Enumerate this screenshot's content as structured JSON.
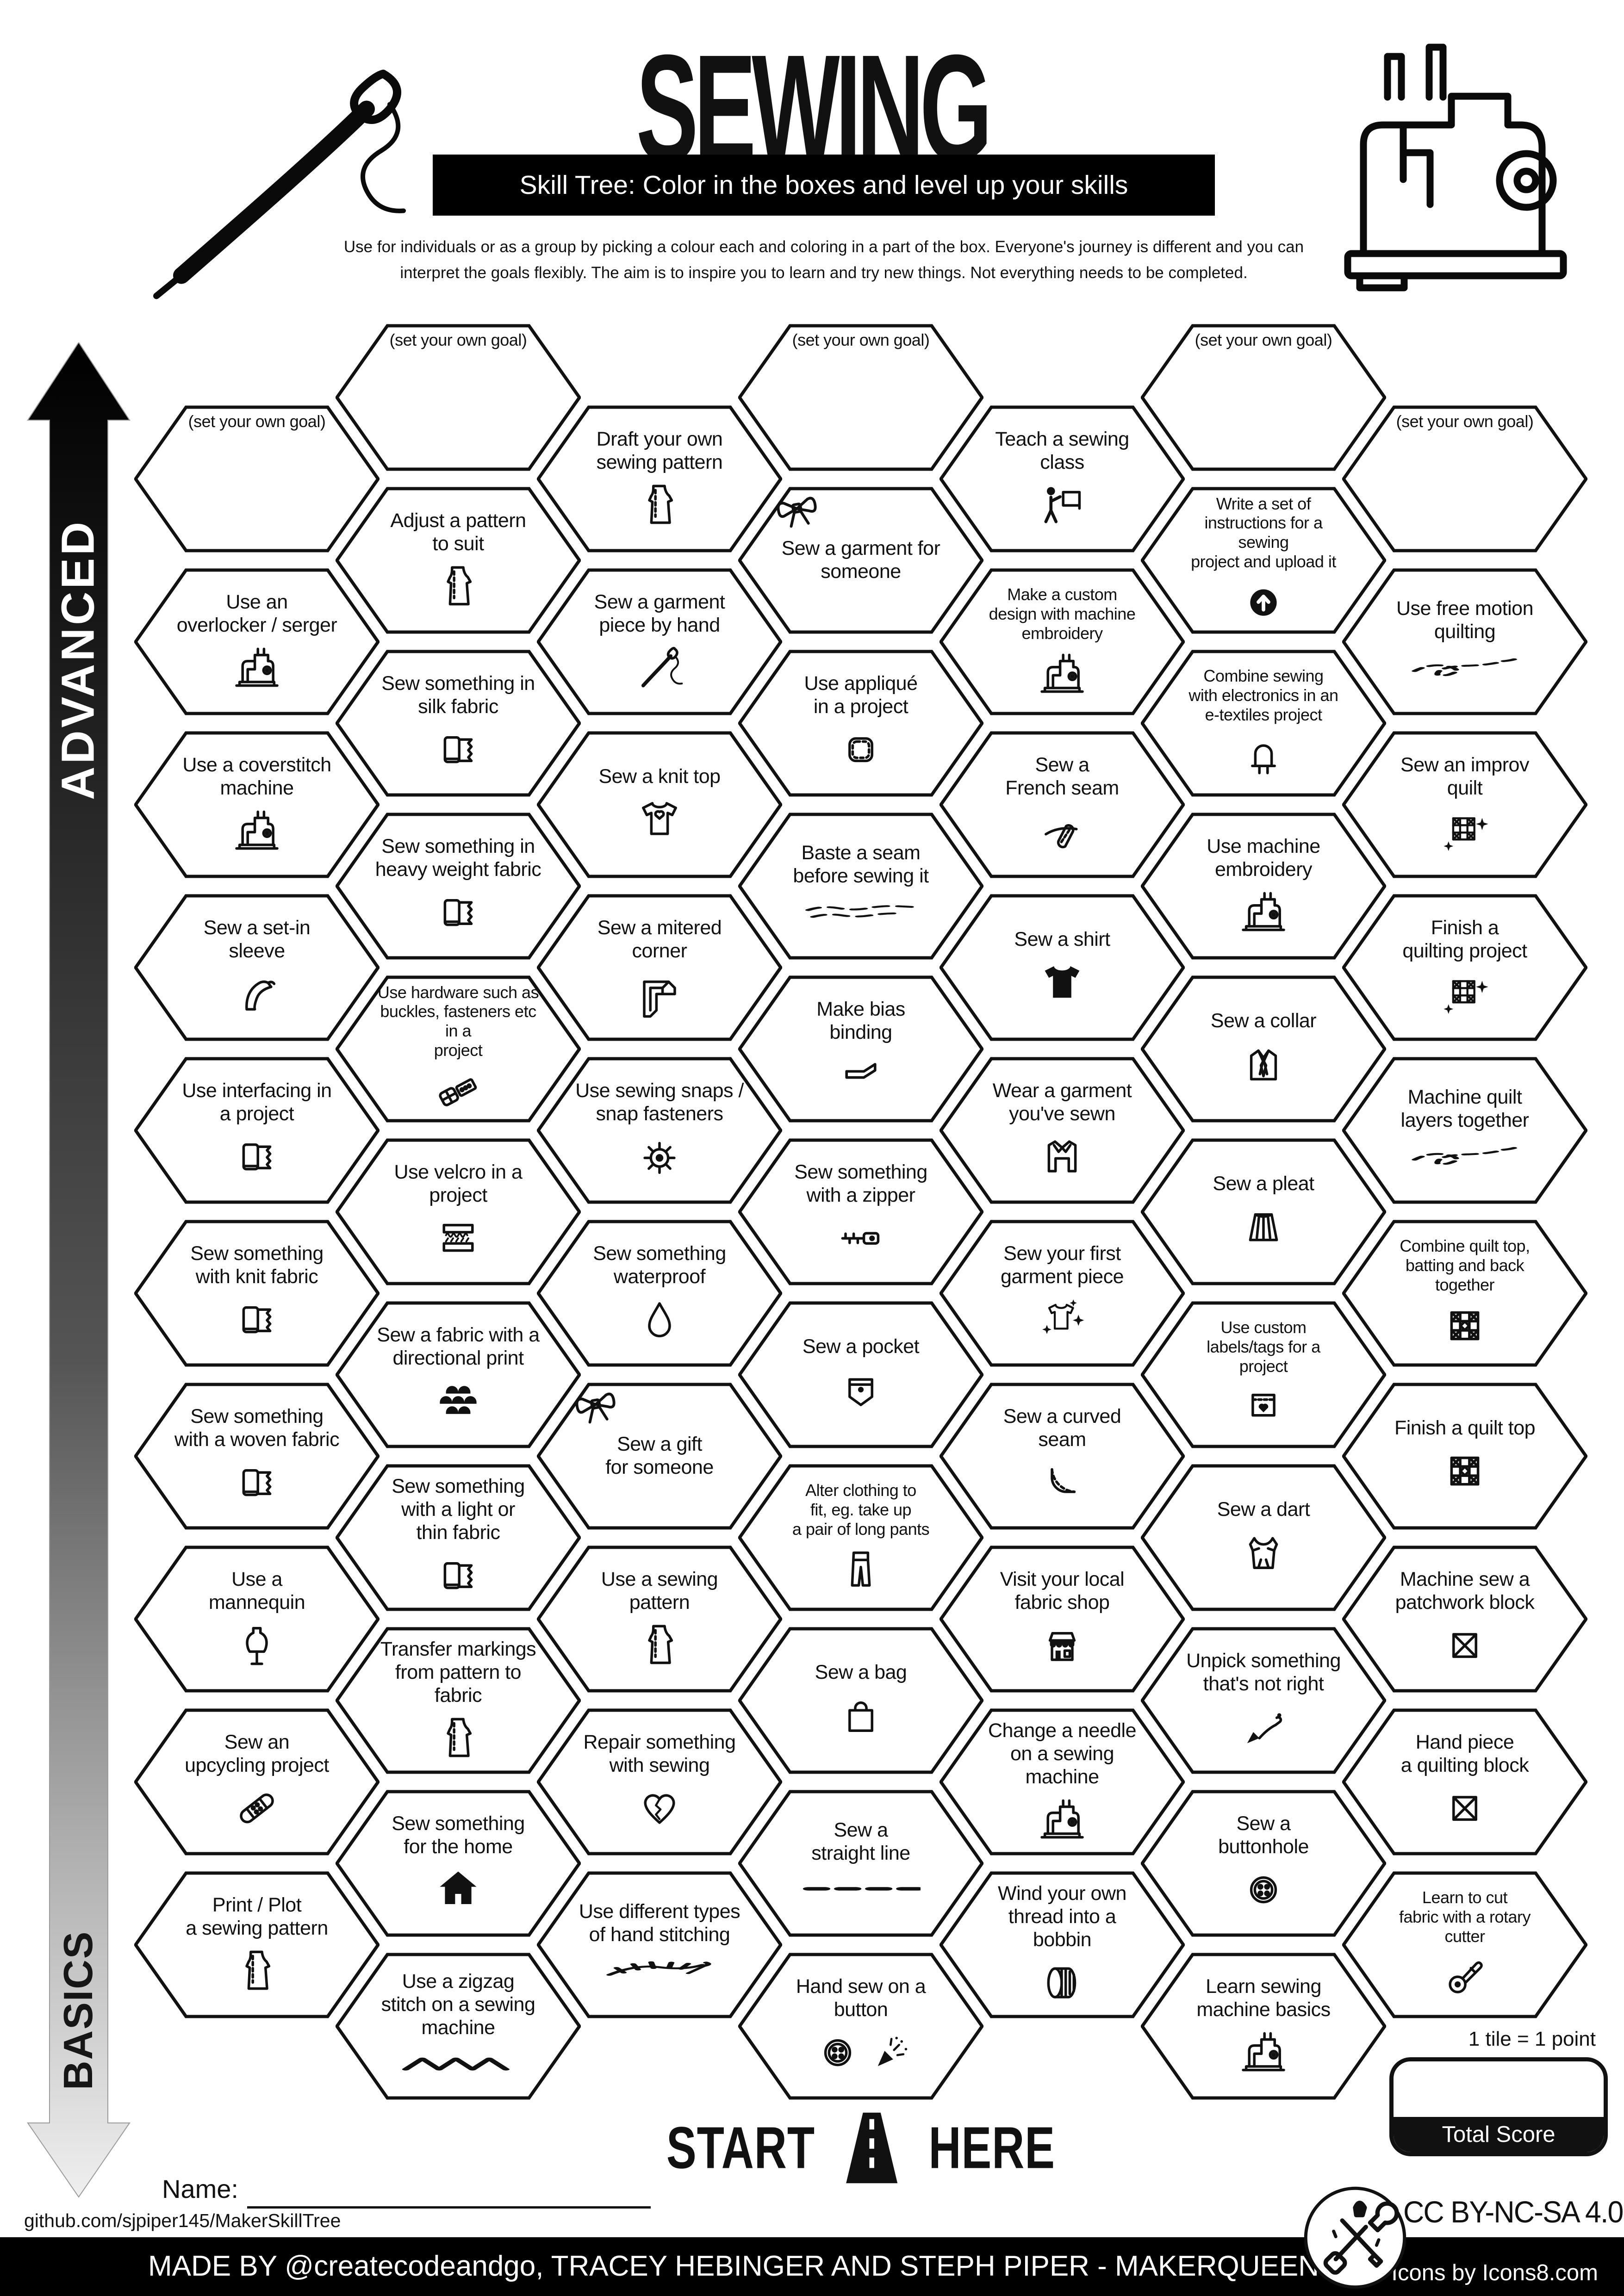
{
  "header": {
    "title": "SEWING",
    "banner": "Skill Tree:  Color in the boxes and level up your skills",
    "description": [
      "Use for individuals or as a group by picking a colour each and coloring in a part of the box.  Everyone's journey is different and you can",
      "interpret the goals flexibly.  The aim is to inspire you to learn and try new things. Not everything needs to be completed."
    ]
  },
  "axis": {
    "top": "ADVANCED",
    "bottom": "BASICS"
  },
  "grid": {
    "columns": [
      {
        "hexes": [
          {
            "label": "(set your own goal)",
            "goal": true
          },
          {
            "label": "Use an\noverlocker / serger",
            "icon": "sewing-machine"
          },
          {
            "label": "Use a coverstitch\nmachine",
            "icon": "sewing-machine"
          },
          {
            "label": "Sew a set-in\nsleeve",
            "icon": "set-in-sleeve"
          },
          {
            "label": "Use interfacing in\na project",
            "icon": "fabric-bolt"
          },
          {
            "label": "Sew something\nwith knit fabric",
            "icon": "fabric-bolt"
          },
          {
            "label": "Sew something\nwith a woven fabric",
            "icon": "fabric-bolt"
          },
          {
            "label": "Use a\nmannequin",
            "icon": "mannequin"
          },
          {
            "label": "Sew an\nupcycling project",
            "icon": "patch-bandage"
          },
          {
            "label": "Print / Plot\na sewing pattern",
            "icon": "pattern-piece"
          }
        ]
      },
      {
        "hexes": [
          {
            "label": "(set your own goal)",
            "goal": true
          },
          {
            "label": "Adjust a pattern\nto suit",
            "icon": "pattern-piece"
          },
          {
            "label": "Sew something in\nsilk fabric",
            "icon": "fabric-bolt"
          },
          {
            "label": "Sew something in\nheavy weight fabric",
            "icon": "fabric-bolt"
          },
          {
            "label": "Use hardware such as\nbuckles, fasteners etc in a\nproject",
            "icon": "buckle",
            "small": true
          },
          {
            "label": "Use velcro in a\nproject",
            "icon": "velcro-strips"
          },
          {
            "label": "Sew a fabric with a\ndirectional print",
            "icon": "scale-print"
          },
          {
            "label": "Sew something\nwith a light or\nthin fabric",
            "icon": "fabric-bolt"
          },
          {
            "label": "Transfer markings\nfrom pattern to fabric",
            "icon": "pattern-piece"
          },
          {
            "label": "Sew something\nfor the home",
            "icon": "house"
          },
          {
            "label": "Use a zigzag\nstitch on a sewing\nmachine",
            "icon": "zigzag-line"
          }
        ]
      },
      {
        "hexes": [
          {
            "label": "Draft your own\nsewing pattern",
            "icon": "pattern-piece"
          },
          {
            "label": "Sew a garment\npiece by hand",
            "icon": "hand-needle"
          },
          {
            "label": "Sew a knit top",
            "icon": "t-shirt-heart"
          },
          {
            "label": "Sew a mitered\ncorner",
            "icon": "mitered-corner"
          },
          {
            "label": "Use sewing snaps /\nsnap fasteners",
            "icon": "snap-fastener"
          },
          {
            "label": "Sew something\nwaterproof",
            "icon": "water-drop"
          },
          {
            "label": "Sew a gift\nfor someone",
            "overlay": "gift-bow"
          },
          {
            "label": "Use a sewing\npattern",
            "icon": "pattern-piece"
          },
          {
            "label": "Repair something\nwith sewing",
            "icon": "mended-heart"
          },
          {
            "label": "Use different types\nof hand stitching",
            "icon": "hand-stitches"
          }
        ]
      },
      {
        "hexes": [
          {
            "label": "(set your own goal)",
            "goal": true
          },
          {
            "label": "Sew a garment for\nsomeone",
            "overlay": "gift-bow"
          },
          {
            "label": "Use appliqué\nin a project",
            "icon": "applique-patch"
          },
          {
            "label": "Baste a seam\nbefore sewing it",
            "icon": "basting-stitches"
          },
          {
            "label": "Make bias\nbinding",
            "icon": "bias-binding"
          },
          {
            "label": "Sew something\nwith a zipper",
            "icon": "zipper"
          },
          {
            "label": "Sew a pocket",
            "icon": "pocket"
          },
          {
            "label": "Alter clothing to\nfit, eg. take up\na pair of long pants",
            "icon": "trousers",
            "small": true
          },
          {
            "label": "Sew a bag",
            "icon": "shopping-bag"
          },
          {
            "label": "Sew a\nstraight line",
            "icon": "dashed-line"
          },
          {
            "label": "Hand sew on a\nbutton",
            "icon": "button",
            "extra": "party-popper"
          }
        ]
      },
      {
        "hexes": [
          {
            "label": "Teach a sewing\nclass",
            "icon": "teacher-board"
          },
          {
            "label": "Make a custom\ndesign with machine\nembroidery",
            "icon": "sewing-machine",
            "small": true
          },
          {
            "label": "Sew a\nFrench seam",
            "icon": "french-seam"
          },
          {
            "label": "Sew a shirt",
            "icon": "t-shirt-solid"
          },
          {
            "label": "Wear a garment\nyou've sewn",
            "icon": "garment-jacket"
          },
          {
            "label": "Sew your first\ngarment piece",
            "icon": "garment-sparkle"
          },
          {
            "label": "Sew a curved\nseam",
            "icon": "curved-seam"
          },
          {
            "label": "Visit your local\nfabric shop",
            "icon": "shop-front"
          },
          {
            "label": "Change a needle\non a sewing machine",
            "icon": "sewing-machine"
          },
          {
            "label": "Wind your own\nthread into a bobbin",
            "icon": "bobbin"
          }
        ]
      },
      {
        "hexes": [
          {
            "label": "(set your own goal)",
            "goal": true
          },
          {
            "label": "Write a set of\ninstructions for a sewing\nproject and upload it",
            "icon": "upload-circle",
            "small": true
          },
          {
            "label": "Combine sewing\nwith electronics in an\ne-textiles project",
            "icon": "led-lightning",
            "small": true
          },
          {
            "label": "Use machine\nembroidery",
            "icon": "sewing-machine"
          },
          {
            "label": "Sew a collar",
            "icon": "collar-shirt"
          },
          {
            "label": "Sew a pleat",
            "icon": "pleated-skirt"
          },
          {
            "label": "Use custom\nlabels/tags for a\nproject",
            "icon": "label-tag",
            "small": true
          },
          {
            "label": "Sew a dart",
            "icon": "dart-bodice"
          },
          {
            "label": "Unpick something\nthat's not right",
            "icon": "seam-ripper"
          },
          {
            "label": "Sew a\nbuttonhole",
            "icon": "button"
          },
          {
            "label": "Learn sewing\nmachine basics",
            "icon": "sewing-machine"
          }
        ]
      },
      {
        "hexes": [
          {
            "label": "(set your own goal)",
            "goal": true
          },
          {
            "label": "Use free motion\nquilting",
            "icon": "free-motion-loop"
          },
          {
            "label": "Sew an improv\nquilt",
            "icon": "quilt-sparkle"
          },
          {
            "label": "Finish a\nquilting project",
            "icon": "quilt-sparkle"
          },
          {
            "label": "Machine quilt\nlayers together",
            "icon": "free-motion-loop"
          },
          {
            "label": "Combine quilt top,\nbatting and back\ntogether",
            "icon": "quilt-block-star",
            "small": true
          },
          {
            "label": "Finish a quilt top",
            "icon": "quilt-block-star"
          },
          {
            "label": "Machine sew a\npatchwork block",
            "icon": "patchwork-block"
          },
          {
            "label": "Hand piece\na quilting block",
            "icon": "patchwork-block"
          },
          {
            "label": "Learn to cut\nfabric with a rotary\ncutter",
            "icon": "rotary-cutter",
            "small": true
          }
        ]
      }
    ]
  },
  "start": {
    "start": "START",
    "here": "HERE"
  },
  "footer": {
    "name_label": "Name:",
    "source": "github.com/sjpiper145/MakerSkillTree",
    "tile_note": "1 tile = 1 point",
    "total_score": "Total Score",
    "license": "CC BY-NC-SA 4.0",
    "credit": "MADE BY @createcodeandgo, TRACEY HEBINGER  AND STEPH PIPER  -  MAKERQUEEN AU",
    "icons_credit": "Icons by Icons8.com"
  }
}
